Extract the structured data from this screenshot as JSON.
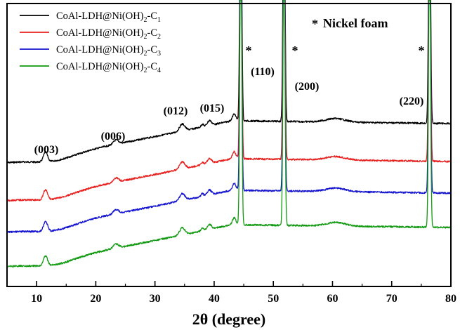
{
  "chart_data": {
    "type": "line",
    "xlabel": "2θ (degree)",
    "ylabel": "",
    "xlim": [
      5,
      80
    ],
    "xticks": [
      10,
      20,
      30,
      40,
      50,
      60,
      70,
      80
    ],
    "y_ticks_shown": false,
    "grid": false,
    "legend_position": "top-left",
    "annotation_note": {
      "symbol": "*",
      "text": "Nickel foam"
    },
    "peak_labels": [
      {
        "text": "(003)",
        "x": 11.5
      },
      {
        "text": "(006)",
        "x": 23.5
      },
      {
        "text": "(012)",
        "x": 34.5
      },
      {
        "text": "(015)",
        "x": 39.2
      },
      {
        "text": "(110)",
        "x": 44.5
      },
      {
        "text": "(200)",
        "x": 51.8
      },
      {
        "text": "(220)",
        "x": 76.4
      }
    ],
    "star_marks": [
      44.5,
      51.8,
      76.4
    ],
    "series": [
      {
        "name_main": "CoAl-LDH@Ni(OH)",
        "name_sub1": "2",
        "name_mid": "-C",
        "name_sub2": "1",
        "color": "#000000"
      },
      {
        "name_main": "CoAl-LDH@Ni(OH)",
        "name_sub1": "2",
        "name_mid": "-C",
        "name_sub2": "2",
        "color": "#e8201e"
      },
      {
        "name_main": "CoAl-LDH@Ni(OH)",
        "name_sub1": "2",
        "name_mid": "-C",
        "name_sub2": "3",
        "color": "#1414d0"
      },
      {
        "name_main": "CoAl-LDH@Ni(OH)",
        "name_sub1": "2",
        "name_mid": "-C",
        "name_sub2": "4",
        "color": "#119a11"
      }
    ]
  }
}
